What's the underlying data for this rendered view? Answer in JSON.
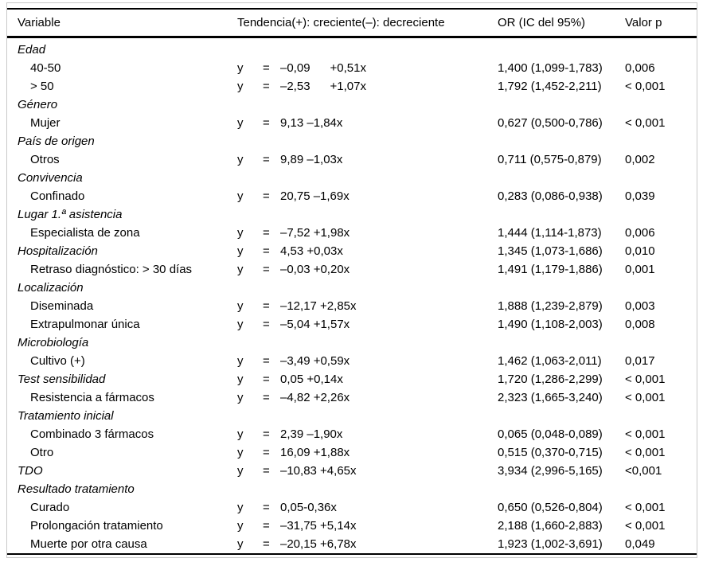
{
  "table": {
    "columns": [
      {
        "label": "Variable"
      },
      {
        "label": "Tendencia(+): creciente(–): decreciente"
      },
      {
        "label": "OR (IC del 95%)"
      },
      {
        "label": "Valor p"
      }
    ],
    "equation_lhs": "y",
    "equation_equals": "=",
    "rows": [
      {
        "label": "Edad",
        "type": "group",
        "equation": "",
        "or_ci": "",
        "p_value": ""
      },
      {
        "label": "40-50",
        "type": "item",
        "equation": "–0,09      +0,51x",
        "or_ci": "1,400 (1,099-1,783)",
        "p_value": "0,006"
      },
      {
        "label": "> 50",
        "type": "item",
        "equation": "–2,53      +1,07x",
        "or_ci": "1,792 (1,452-2,211)",
        "p_value": "< 0,001"
      },
      {
        "label": "Género",
        "type": "group",
        "equation": "",
        "or_ci": "",
        "p_value": ""
      },
      {
        "label": "Mujer",
        "type": "item",
        "equation": "9,13 –1,84x",
        "or_ci": "0,627 (0,500-0,786)",
        "p_value": "< 0,001"
      },
      {
        "label": "País de origen",
        "type": "group",
        "equation": "",
        "or_ci": "",
        "p_value": ""
      },
      {
        "label": "Otros",
        "type": "item",
        "equation": "9,89 –1,03x",
        "or_ci": "0,711 (0,575-0,879)",
        "p_value": "0,002"
      },
      {
        "label": "Convivencia",
        "type": "group",
        "equation": "",
        "or_ci": "",
        "p_value": ""
      },
      {
        "label": "Confinado",
        "type": "item",
        "equation": "20,75 –1,69x",
        "or_ci": "0,283 (0,086-0,938)",
        "p_value": "0,039"
      },
      {
        "label": "Lugar 1.ª asistencia",
        "type": "group",
        "equation": "",
        "or_ci": "",
        "p_value": ""
      },
      {
        "label": "Especialista de zona",
        "type": "item",
        "equation": "–7,52 +1,98x",
        "or_ci": "1,444 (1,114-1,873)",
        "p_value": "0,006"
      },
      {
        "label": "Hospitalización",
        "type": "group",
        "equation": "4,53 +0,03x",
        "or_ci": "1,345 (1,073-1,686)",
        "p_value": "0,010"
      },
      {
        "label": "Retraso diagnóstico: > 30 días",
        "type": "item",
        "equation": "–0,03 +0,20x",
        "or_ci": "1,491 (1,179-1,886)",
        "p_value": "0,001"
      },
      {
        "label": "Localización",
        "type": "group",
        "equation": "",
        "or_ci": "",
        "p_value": ""
      },
      {
        "label": "Diseminada",
        "type": "item",
        "equation": "–12,17 +2,85x",
        "or_ci": "1,888 (1,239-2,879)",
        "p_value": "0,003"
      },
      {
        "label": "Extrapulmonar única",
        "type": "item",
        "equation": "–5,04 +1,57x",
        "or_ci": "1,490 (1,108-2,003)",
        "p_value": "0,008"
      },
      {
        "label": "Microbiología",
        "type": "group",
        "equation": "",
        "or_ci": "",
        "p_value": ""
      },
      {
        "label": "Cultivo (+)",
        "type": "item",
        "equation": "–3,49 +0,59x",
        "or_ci": "1,462 (1,063-2,011)",
        "p_value": "0,017"
      },
      {
        "label": "Test sensibilidad",
        "type": "group",
        "equation": "0,05 +0,14x",
        "or_ci": "1,720 (1,286-2,299)",
        "p_value": "< 0,001"
      },
      {
        "label": "Resistencia a fármacos",
        "type": "item",
        "equation": "–4,82 +2,26x",
        "or_ci": "2,323 (1,665-3,240)",
        "p_value": "< 0,001"
      },
      {
        "label": "Tratamiento inicial",
        "type": "group",
        "equation": "",
        "or_ci": "",
        "p_value": ""
      },
      {
        "label": "Combinado 3 fármacos",
        "type": "item",
        "equation": "2,39 –1,90x",
        "or_ci": "0,065 (0,048-0,089)",
        "p_value": "< 0,001"
      },
      {
        "label": "Otro",
        "type": "item",
        "equation": "16,09 +1,88x",
        "or_ci": "0,515 (0,370-0,715)",
        "p_value": "< 0,001"
      },
      {
        "label": "TDO",
        "type": "group",
        "equation": "–10,83 +4,65x",
        "or_ci": "3,934 (2,996-5,165)",
        "p_value": "<0,001"
      },
      {
        "label": "Resultado tratamiento",
        "type": "group",
        "equation": "",
        "or_ci": "",
        "p_value": ""
      },
      {
        "label": "Curado",
        "type": "item",
        "equation": "0,05-0,36x",
        "or_ci": "0,650 (0,526-0,804)",
        "p_value": "< 0,001"
      },
      {
        "label": "Prolongación tratamiento",
        "type": "item",
        "equation": "–31,75 +5,14x",
        "or_ci": "2,188 (1,660-2,883)",
        "p_value": "< 0,001"
      },
      {
        "label": "Muerte por otra causa",
        "type": "item",
        "equation": "–20,15 +6,78x",
        "or_ci": "1,923 (1,002-3,691)",
        "p_value": "0,049"
      }
    ]
  }
}
